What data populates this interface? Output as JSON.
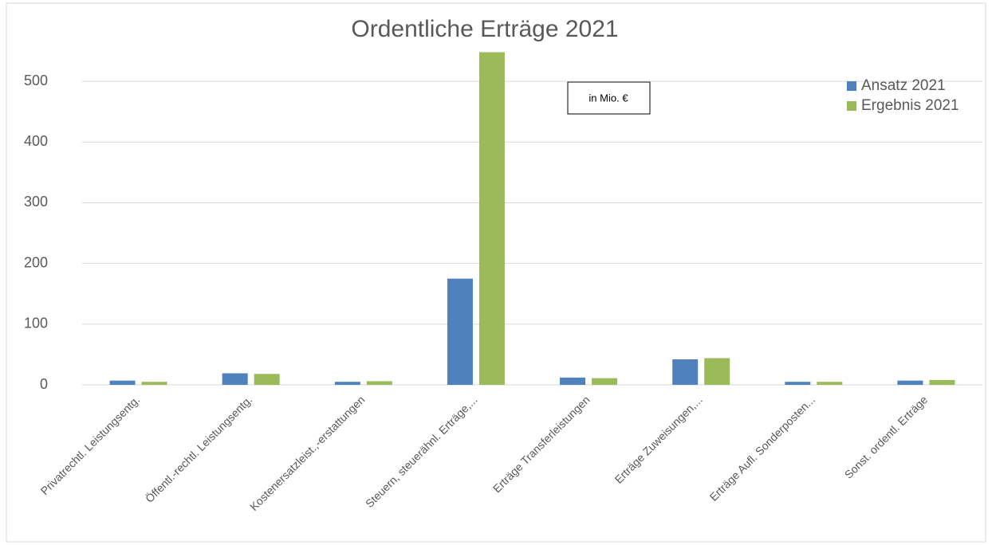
{
  "chart_data": {
    "type": "bar",
    "title": "Ordentliche Erträge 2021",
    "annotation": "in Mio. €",
    "categories": [
      "Privatrechtl. Leistungsentg.",
      "Öffentl.-rechtl. Leistungsentg.",
      "Kostenersatzleist.,-erstattungen",
      "Steuern, steuerähnl. Erträge,...",
      "Erträge Transferleistungen",
      "Erträge Zuweisungen,...",
      "Erträge Aufl. Sonderposten...",
      "Sonst. ordentl. Erträge"
    ],
    "series": [
      {
        "name": "Ansatz 2021",
        "color": "#4f81bd",
        "values": [
          7,
          19,
          5,
          175,
          12,
          42,
          5,
          7
        ]
      },
      {
        "name": "Ergebnis 2021",
        "color": "#9bbb59",
        "values": [
          5,
          18,
          6,
          548,
          11,
          44,
          5,
          8
        ]
      }
    ],
    "ylim": [
      0,
      550
    ],
    "yticks": [
      0,
      100,
      200,
      300,
      400,
      500
    ],
    "grid": true,
    "legend": "top-right"
  }
}
